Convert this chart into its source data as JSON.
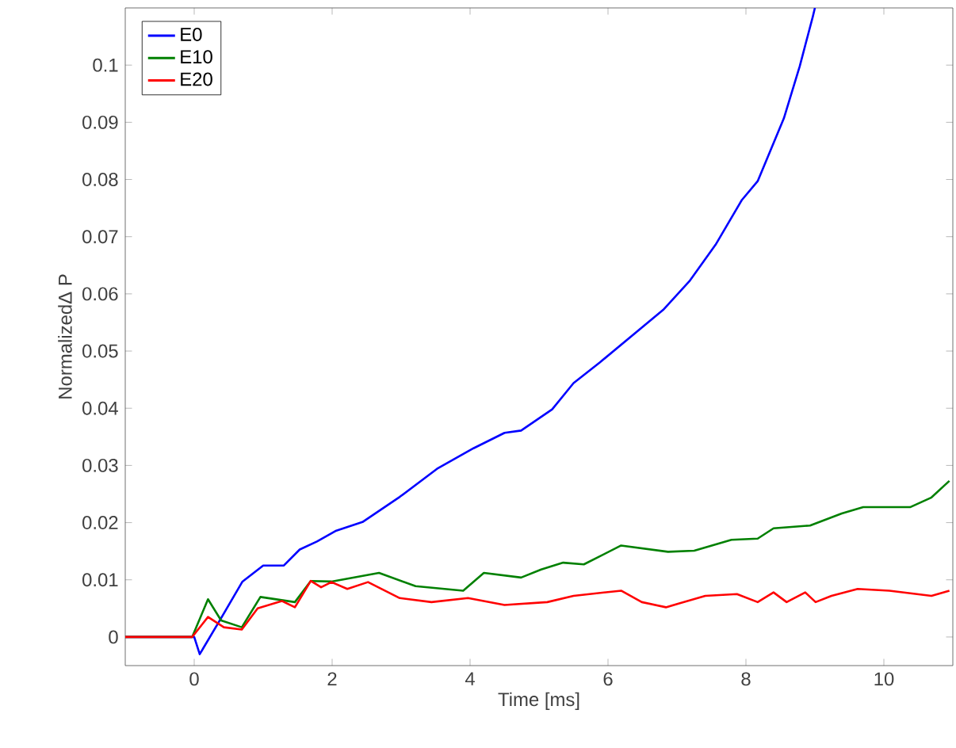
{
  "chart_data": {
    "type": "line",
    "xlabel": "Time [ms]",
    "ylabel": "NormalizedΔ P",
    "xlim": [
      -1,
      11
    ],
    "ylim": [
      -0.005,
      0.11
    ],
    "xticks": [
      0,
      2,
      4,
      6,
      8,
      10
    ],
    "yticks": [
      0,
      0.01,
      0.02,
      0.03,
      0.04,
      0.05,
      0.06,
      0.07,
      0.08,
      0.09,
      0.1
    ],
    "grid": false,
    "legend": "top left",
    "line_style": "solid",
    "series": [
      {
        "name": "E0",
        "color": "#0000ff",
        "x": [
          -1,
          0,
          0.08,
          0.39,
          0.7,
          1.0,
          1.3,
          1.53,
          1.78,
          2.06,
          2.44,
          2.98,
          3.52,
          4.05,
          4.5,
          4.74,
          5.19,
          5.5,
          5.88,
          6.34,
          6.8,
          7.18,
          7.56,
          7.94,
          8.17,
          8.55,
          8.78,
          8.97,
          9.0
        ],
        "values": [
          0,
          0,
          -0.003,
          0.0033,
          0.0097,
          0.0125,
          0.0125,
          0.0153,
          0.0167,
          0.0186,
          0.0201,
          0.0245,
          0.0294,
          0.033,
          0.0357,
          0.0361,
          0.0398,
          0.0444,
          0.048,
          0.0526,
          0.0572,
          0.0622,
          0.0686,
          0.0764,
          0.0797,
          0.0907,
          0.0998,
          0.1085,
          0.11
        ]
      },
      {
        "name": "E10",
        "color": "#008000",
        "x": [
          -1,
          -0.03,
          0.2,
          0.39,
          0.69,
          0.96,
          1.46,
          1.69,
          1.99,
          2.68,
          3.21,
          3.9,
          4.2,
          4.74,
          5.03,
          5.35,
          5.65,
          6.19,
          6.87,
          7.25,
          7.79,
          8.17,
          8.4,
          8.93,
          9.39,
          9.7,
          10.38,
          10.69,
          10.95
        ],
        "values": [
          0,
          0,
          0.0066,
          0.0029,
          0.0017,
          0.007,
          0.0061,
          0.0098,
          0.0097,
          0.0112,
          0.0089,
          0.0081,
          0.0112,
          0.0104,
          0.0118,
          0.013,
          0.0127,
          0.016,
          0.0149,
          0.0151,
          0.017,
          0.0172,
          0.019,
          0.0195,
          0.0216,
          0.0227,
          0.0227,
          0.0244,
          0.0273
        ]
      },
      {
        "name": "E20",
        "color": "#ff0000",
        "x": [
          -1,
          -0.03,
          0.2,
          0.43,
          0.69,
          0.92,
          1.27,
          1.46,
          1.69,
          1.84,
          1.99,
          2.22,
          2.52,
          2.98,
          3.44,
          3.97,
          4.5,
          5.12,
          5.5,
          6.19,
          6.49,
          6.84,
          7.41,
          7.87,
          8.17,
          8.4,
          8.59,
          8.86,
          9.01,
          9.24,
          9.62,
          10.08,
          10.69,
          10.95
        ],
        "values": [
          0,
          0,
          0.0035,
          0.0017,
          0.0013,
          0.005,
          0.0063,
          0.0052,
          0.0098,
          0.0087,
          0.0096,
          0.0084,
          0.0096,
          0.0068,
          0.0061,
          0.0068,
          0.0056,
          0.0061,
          0.0072,
          0.0081,
          0.0061,
          0.0052,
          0.0072,
          0.0075,
          0.0061,
          0.0078,
          0.0061,
          0.0078,
          0.0061,
          0.0072,
          0.0084,
          0.0081,
          0.0072,
          0.0081
        ]
      }
    ]
  }
}
